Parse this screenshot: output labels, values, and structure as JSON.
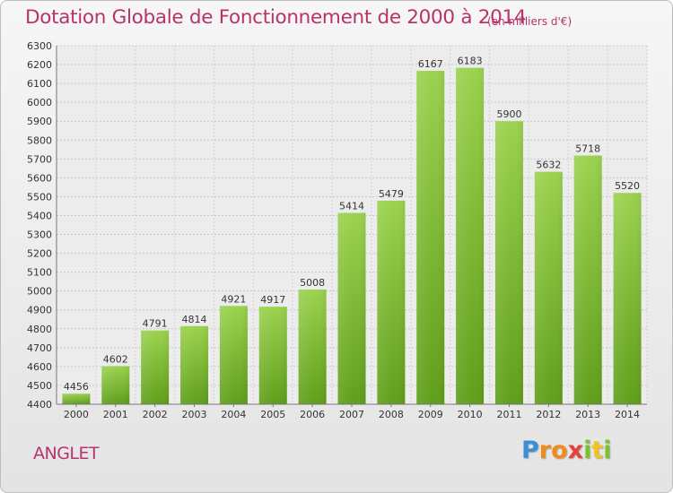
{
  "chart_data": {
    "type": "bar",
    "title": "Dotation Globale de Fonctionnement de 2000 à 2014",
    "unit_note": "(en milliers d'€)",
    "categories": [
      "2000",
      "2001",
      "2002",
      "2003",
      "2004",
      "2005",
      "2006",
      "2007",
      "2008",
      "2009",
      "2010",
      "2011",
      "2012",
      "2013",
      "2014"
    ],
    "values": [
      4456,
      4602,
      4791,
      4814,
      4921,
      4917,
      5008,
      5414,
      5479,
      6167,
      6183,
      5900,
      5632,
      5718,
      5520
    ],
    "ylim": [
      4400,
      6300
    ],
    "yticks": [
      4400,
      4500,
      4600,
      4700,
      4800,
      4900,
      5000,
      5100,
      5200,
      5300,
      5400,
      5500,
      5600,
      5700,
      5800,
      5900,
      6000,
      6100,
      6200,
      6300
    ],
    "grid": true,
    "bar_color": "#7dc232",
    "xlabel": "",
    "ylabel": ""
  },
  "commune": "ANGLET",
  "logo": {
    "letters": [
      "P",
      "r",
      "o",
      "x",
      "i",
      "t",
      "i"
    ],
    "colors": [
      "#3a8fd6",
      "#f28b1e",
      "#f28b1e",
      "#e83e3e",
      "#7dc232",
      "#f2c21e",
      "#7dc232"
    ]
  }
}
